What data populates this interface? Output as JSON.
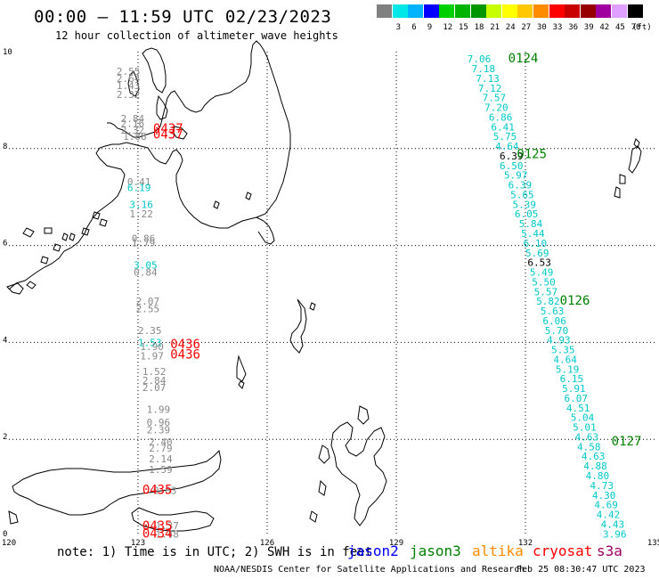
{
  "header": {
    "title": "00:00 — 11:59 UTC 02/23/2023",
    "subtitle": "12 hour collection of altimeter wave heights"
  },
  "legend": {
    "unit": "(ft)",
    "bins": [
      {
        "label": "",
        "color": "#808080"
      },
      {
        "label": "3",
        "color": "#00e8e8"
      },
      {
        "label": "6",
        "color": "#00b4ff"
      },
      {
        "label": "9",
        "color": "#0000ff"
      },
      {
        "label": "12",
        "color": "#00d000"
      },
      {
        "label": "15",
        "color": "#00b400"
      },
      {
        "label": "18",
        "color": "#009600"
      },
      {
        "label": "21",
        "color": "#c8ff00"
      },
      {
        "label": "24",
        "color": "#ffff00"
      },
      {
        "label": "27",
        "color": "#ffc800"
      },
      {
        "label": "30",
        "color": "#ff8c00"
      },
      {
        "label": "33",
        "color": "#ff0000"
      },
      {
        "label": "36",
        "color": "#c80000"
      },
      {
        "label": "39",
        "color": "#960000"
      },
      {
        "label": "42",
        "color": "#a000a0"
      },
      {
        "label": "45",
        "color": "#e0a0ff"
      },
      {
        "label": "70",
        "color": "#000000"
      }
    ]
  },
  "axes": {
    "lon_ticks": [
      "120",
      "123",
      "126",
      "129",
      "132",
      "135"
    ],
    "lat_ticks": [
      "0",
      "2",
      "4",
      "6",
      "8",
      "10"
    ]
  },
  "colors": {
    "gray_track": "#888888",
    "cyan_track": "#00c8c8",
    "red_label": "#ff0000",
    "green_label": "#008000"
  },
  "pass_labels": [
    {
      "text": "0124",
      "lon": 131.6,
      "lat": 9.85,
      "color": "green"
    },
    {
      "text": "0125",
      "lon": 131.8,
      "lat": 7.88,
      "color": "green"
    },
    {
      "text": "0126",
      "lon": 132.8,
      "lat": 4.85,
      "color": "green"
    },
    {
      "text": "0127",
      "lon": 134.0,
      "lat": 1.95,
      "color": "green"
    },
    {
      "text": "0437",
      "lon": 123.35,
      "lat": 8.4,
      "color": "red"
    },
    {
      "text": "0437",
      "lon": 123.35,
      "lat": 8.28,
      "color": "red"
    },
    {
      "text": "0436",
      "lon": 123.75,
      "lat": 3.95,
      "color": "red"
    },
    {
      "text": "0436",
      "lon": 123.75,
      "lat": 3.74,
      "color": "red"
    },
    {
      "text": "0435",
      "lon": 123.1,
      "lat": 0.95,
      "color": "red"
    },
    {
      "text": "0435",
      "lon": 123.1,
      "lat": 0.2,
      "color": "red"
    },
    {
      "text": "0434",
      "lon": 123.1,
      "lat": 0.05,
      "color": "red"
    }
  ],
  "east_track": [
    {
      "text": "7.06",
      "lon": 130.65,
      "lat": 9.85,
      "c": "cyan"
    },
    {
      "text": "7.18",
      "lon": 130.75,
      "lat": 9.65,
      "c": "cyan"
    },
    {
      "text": "7.13",
      "lon": 130.85,
      "lat": 9.45,
      "c": "cyan"
    },
    {
      "text": "7.12",
      "lon": 130.9,
      "lat": 9.25,
      "c": "cyan"
    },
    {
      "text": "7.57",
      "lon": 131.0,
      "lat": 9.05,
      "c": "cyan"
    },
    {
      "text": "7.20",
      "lon": 131.05,
      "lat": 8.85,
      "c": "cyan"
    },
    {
      "text": "6.86",
      "lon": 131.15,
      "lat": 8.65,
      "c": "cyan"
    },
    {
      "text": "6.41",
      "lon": 131.2,
      "lat": 8.45,
      "c": "cyan"
    },
    {
      "text": "5.75",
      "lon": 131.25,
      "lat": 8.25,
      "c": "cyan"
    },
    {
      "text": "4.64",
      "lon": 131.3,
      "lat": 8.05,
      "c": "cyan"
    },
    {
      "text": "6.39",
      "lon": 131.4,
      "lat": 7.85,
      "c": "black"
    },
    {
      "text": "6.50",
      "lon": 131.4,
      "lat": 7.65,
      "c": "cyan"
    },
    {
      "text": "5.97",
      "lon": 131.5,
      "lat": 7.45,
      "c": "cyan"
    },
    {
      "text": "6.39",
      "lon": 131.6,
      "lat": 7.25,
      "c": "cyan"
    },
    {
      "text": "5.65",
      "lon": 131.65,
      "lat": 7.05,
      "c": "cyan"
    },
    {
      "text": "5.39",
      "lon": 131.7,
      "lat": 6.85,
      "c": "cyan"
    },
    {
      "text": "6.05",
      "lon": 131.75,
      "lat": 6.65,
      "c": "cyan"
    },
    {
      "text": "5.84",
      "lon": 131.85,
      "lat": 6.45,
      "c": "cyan"
    },
    {
      "text": "5.44",
      "lon": 131.9,
      "lat": 6.25,
      "c": "cyan"
    },
    {
      "text": "6.10",
      "lon": 131.95,
      "lat": 6.05,
      "c": "cyan"
    },
    {
      "text": "5.69",
      "lon": 132.0,
      "lat": 5.85,
      "c": "cyan"
    },
    {
      "text": "6.53",
      "lon": 132.05,
      "lat": 5.65,
      "c": "black"
    },
    {
      "text": "5.49",
      "lon": 132.1,
      "lat": 5.45,
      "c": "cyan"
    },
    {
      "text": "5.50",
      "lon": 132.15,
      "lat": 5.25,
      "c": "cyan"
    },
    {
      "text": "5.57",
      "lon": 132.2,
      "lat": 5.05,
      "c": "cyan"
    },
    {
      "text": "5.82",
      "lon": 132.25,
      "lat": 4.85,
      "c": "cyan"
    },
    {
      "text": "5.63",
      "lon": 132.35,
      "lat": 4.65,
      "c": "cyan"
    },
    {
      "text": "6.06",
      "lon": 132.4,
      "lat": 4.45,
      "c": "cyan"
    },
    {
      "text": "5.70",
      "lon": 132.45,
      "lat": 4.25,
      "c": "cyan"
    },
    {
      "text": "4.93",
      "lon": 132.5,
      "lat": 4.05,
      "c": "cyan"
    },
    {
      "text": "5.35",
      "lon": 132.6,
      "lat": 3.85,
      "c": "cyan"
    },
    {
      "text": "4.64",
      "lon": 132.65,
      "lat": 3.65,
      "c": "cyan"
    },
    {
      "text": "5.19",
      "lon": 132.7,
      "lat": 3.45,
      "c": "cyan"
    },
    {
      "text": "6.15",
      "lon": 132.8,
      "lat": 3.25,
      "c": "cyan"
    },
    {
      "text": "5.91",
      "lon": 132.85,
      "lat": 3.05,
      "c": "cyan"
    },
    {
      "text": "6.07",
      "lon": 132.9,
      "lat": 2.85,
      "c": "cyan"
    },
    {
      "text": "4.51",
      "lon": 132.95,
      "lat": 2.65,
      "c": "cyan"
    },
    {
      "text": "5.04",
      "lon": 133.05,
      "lat": 2.45,
      "c": "cyan"
    },
    {
      "text": "5.01",
      "lon": 133.1,
      "lat": 2.25,
      "c": "cyan"
    },
    {
      "text": "4.63",
      "lon": 133.15,
      "lat": 2.05,
      "c": "cyan"
    },
    {
      "text": "4.58",
      "lon": 133.2,
      "lat": 1.85,
      "c": "cyan"
    },
    {
      "text": "4.63",
      "lon": 133.3,
      "lat": 1.65,
      "c": "cyan"
    },
    {
      "text": "4.88",
      "lon": 133.35,
      "lat": 1.45,
      "c": "cyan"
    },
    {
      "text": "4.80",
      "lon": 133.4,
      "lat": 1.25,
      "c": "cyan"
    },
    {
      "text": "4.73",
      "lon": 133.5,
      "lat": 1.05,
      "c": "cyan"
    },
    {
      "text": "4.30",
      "lon": 133.55,
      "lat": 0.85,
      "c": "cyan"
    },
    {
      "text": "4.69",
      "lon": 133.6,
      "lat": 0.65,
      "c": "cyan"
    },
    {
      "text": "4.42",
      "lon": 133.65,
      "lat": 0.45,
      "c": "cyan"
    },
    {
      "text": "4.43",
      "lon": 133.75,
      "lat": 0.25,
      "c": "cyan"
    },
    {
      "text": "3.96",
      "lon": 133.8,
      "lat": 0.05,
      "c": "cyan"
    }
  ],
  "west_track": [
    {
      "text": "2.55",
      "lon": 122.5,
      "lat": 9.6,
      "c": "gray"
    },
    {
      "text": "2.64",
      "lon": 122.5,
      "lat": 9.45,
      "c": "gray"
    },
    {
      "text": "1.43",
      "lon": 122.5,
      "lat": 9.3,
      "c": "gray"
    },
    {
      "text": "2.32",
      "lon": 122.5,
      "lat": 9.12,
      "c": "gray"
    },
    {
      "text": "2.84",
      "lon": 122.6,
      "lat": 8.62,
      "c": "gray"
    },
    {
      "text": "2.16",
      "lon": 122.6,
      "lat": 8.52,
      "c": "gray"
    },
    {
      "text": "2.32",
      "lon": 122.6,
      "lat": 8.38,
      "c": "gray"
    },
    {
      "text": "1.88",
      "lon": 122.65,
      "lat": 8.25,
      "c": "gray"
    },
    {
      "text": "0.41",
      "lon": 122.75,
      "lat": 7.32,
      "c": "gray"
    },
    {
      "text": "6.19",
      "lon": 122.75,
      "lat": 7.2,
      "c": "cyan"
    },
    {
      "text": "3.16",
      "lon": 122.8,
      "lat": 6.85,
      "c": "cyan"
    },
    {
      "text": "1.22",
      "lon": 122.8,
      "lat": 6.65,
      "c": "gray"
    },
    {
      "text": "0.86",
      "lon": 122.85,
      "lat": 6.15,
      "c": "gray"
    },
    {
      "text": "1.79",
      "lon": 122.85,
      "lat": 6.06,
      "c": "gray"
    },
    {
      "text": "3.05",
      "lon": 122.9,
      "lat": 5.6,
      "c": "cyan"
    },
    {
      "text": "0.84",
      "lon": 122.9,
      "lat": 5.45,
      "c": "gray"
    },
    {
      "text": "2.07",
      "lon": 122.95,
      "lat": 4.85,
      "c": "gray"
    },
    {
      "text": "2.55",
      "lon": 122.95,
      "lat": 4.7,
      "c": "gray"
    },
    {
      "text": "2.35",
      "lon": 123.0,
      "lat": 4.25,
      "c": "gray"
    },
    {
      "text": "1.53",
      "lon": 123.0,
      "lat": 4.0,
      "c": "cyan"
    },
    {
      "text": "1.90",
      "lon": 123.05,
      "lat": 3.92,
      "c": "gray"
    },
    {
      "text": "1.97",
      "lon": 123.05,
      "lat": 3.72,
      "c": "gray"
    },
    {
      "text": "1.52",
      "lon": 123.1,
      "lat": 3.4,
      "c": "gray"
    },
    {
      "text": "2.84",
      "lon": 123.1,
      "lat": 3.22,
      "c": "gray"
    },
    {
      "text": "2.07",
      "lon": 123.1,
      "lat": 3.07,
      "c": "gray"
    },
    {
      "text": "1.99",
      "lon": 123.2,
      "lat": 2.62,
      "c": "gray"
    },
    {
      "text": "0.96",
      "lon": 123.2,
      "lat": 2.35,
      "c": "gray"
    },
    {
      "text": "2.39",
      "lon": 123.2,
      "lat": 2.2,
      "c": "gray"
    },
    {
      "text": "2.40",
      "lon": 123.25,
      "lat": 1.95,
      "c": "gray"
    },
    {
      "text": "2.79",
      "lon": 123.25,
      "lat": 1.82,
      "c": "gray"
    },
    {
      "text": "2.14",
      "lon": 123.25,
      "lat": 1.6,
      "c": "gray"
    },
    {
      "text": "1.59",
      "lon": 123.25,
      "lat": 1.38,
      "c": "gray"
    },
    {
      "text": "0.63",
      "lon": 123.35,
      "lat": 0.95,
      "c": "gray"
    },
    {
      "text": "1.37",
      "lon": 123.4,
      "lat": 0.22,
      "c": "gray"
    },
    {
      "text": "1.48",
      "lon": 123.4,
      "lat": 0.05,
      "c": "gray"
    }
  ],
  "footer": {
    "note": "note: 1) Time is in UTC; 2) SWH is in feet",
    "satellites": [
      {
        "name": "jason2",
        "color": "#0000ff"
      },
      {
        "name": "jason3",
        "color": "#008000"
      },
      {
        "name": "altika",
        "color": "#ff8c00"
      },
      {
        "name": "cryosat",
        "color": "#ff0000"
      },
      {
        "name": "s3a",
        "color": "#a00060"
      }
    ],
    "credit": "NOAA/NESDIS Center for Satellite Applications and Research",
    "generated": "Feb 25 08:30:47 UTC 2023"
  }
}
